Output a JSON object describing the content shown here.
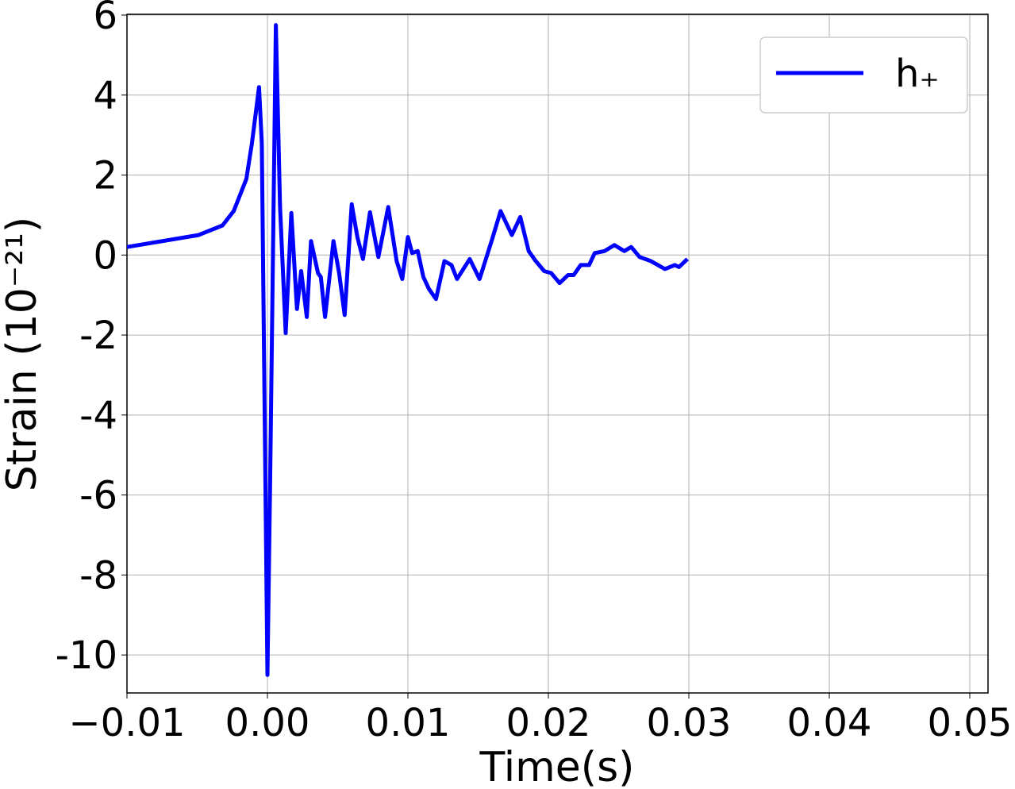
{
  "chart_data": {
    "type": "line",
    "xlabel": "Time(s)",
    "ylabel": "Strain (10⁻²¹)",
    "xlim": [
      -0.01,
      0.0513
    ],
    "ylim": [
      -10.95,
      6.02
    ],
    "xticks": [
      {
        "value": -0.01,
        "label": "−0.01"
      },
      {
        "value": 0,
        "label": "0.00"
      },
      0.01,
      0.02,
      0.03,
      0.04,
      0.05
    ],
    "yticks": [
      -10,
      -8,
      -6,
      -4,
      -2,
      0,
      2,
      4,
      6
    ],
    "grid": true,
    "legend": "upper right",
    "series": [
      {
        "name": "h₊",
        "color": "#0000ff",
        "x": [
          -0.01,
          -0.0049,
          -0.0032,
          -0.0024,
          -0.0015,
          -0.0011,
          -0.0006,
          -0.0004,
          0.0,
          0.0002,
          0.0006,
          0.0009,
          0.0013,
          0.0017,
          0.0021,
          0.0024,
          0.0028,
          0.0031,
          0.0036,
          0.0038,
          0.0041,
          0.0047,
          0.0051,
          0.0055,
          0.006,
          0.0064,
          0.0068,
          0.0073,
          0.0079,
          0.0086,
          0.0092,
          0.0096,
          0.01,
          0.0103,
          0.0107,
          0.0111,
          0.0115,
          0.012,
          0.0126,
          0.0131,
          0.0135,
          0.0144,
          0.0151,
          0.016,
          0.0166,
          0.0174,
          0.018,
          0.0186,
          0.0191,
          0.0197,
          0.0202,
          0.0208,
          0.0214,
          0.0218,
          0.0223,
          0.0229,
          0.0233,
          0.024,
          0.0247,
          0.0254,
          0.0259,
          0.0265,
          0.0273,
          0.0283,
          0.029,
          0.0293,
          0.0299
        ],
        "values": [
          0.2,
          0.5,
          0.74,
          1.1,
          1.9,
          2.8,
          4.2,
          2.8,
          -10.5,
          -5.5,
          5.75,
          1.2,
          -1.95,
          1.05,
          -1.35,
          -0.4,
          -1.55,
          0.35,
          -0.45,
          -0.55,
          -1.55,
          0.35,
          -0.45,
          -1.5,
          1.27,
          0.45,
          -0.1,
          1.07,
          -0.05,
          1.2,
          -0.15,
          -0.6,
          0.45,
          0.05,
          0.1,
          -0.55,
          -0.85,
          -1.1,
          -0.15,
          -0.25,
          -0.6,
          -0.1,
          -0.6,
          0.4,
          1.1,
          0.5,
          0.95,
          0.1,
          -0.15,
          -0.4,
          -0.45,
          -0.7,
          -0.5,
          -0.5,
          -0.25,
          -0.25,
          0.05,
          0.1,
          0.25,
          0.1,
          0.2,
          -0.05,
          -0.15,
          -0.35,
          -0.25,
          -0.3,
          -0.1
        ]
      }
    ]
  }
}
